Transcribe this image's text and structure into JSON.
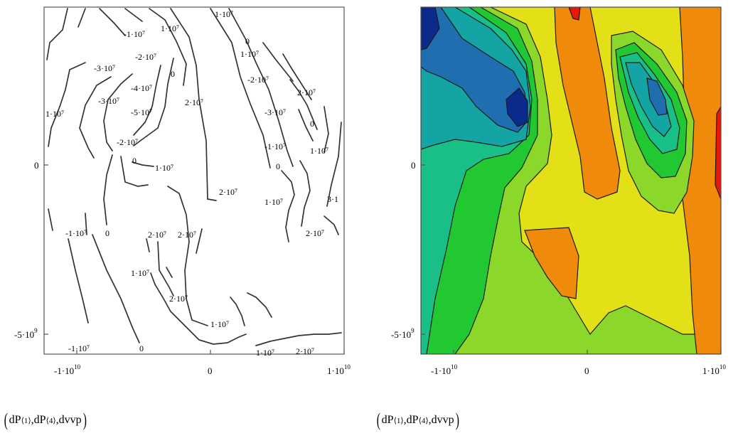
{
  "chart_data": [
    {
      "type": "contour",
      "style": "lines",
      "x_ticks": [
        {
          "base": "-1·10",
          "exp": "10",
          "value": -10000000000
        },
        {
          "base": "0",
          "exp": "",
          "value": 0
        },
        {
          "base": "1·10",
          "exp": "10",
          "value": 10000000000
        }
      ],
      "y_ticks": [
        {
          "base": "0",
          "exp": "",
          "value": 0
        },
        {
          "base": "-5·10",
          "exp": "9",
          "value": -5000000000
        }
      ],
      "contour_labels": [
        "-1·10⁷",
        "1·10⁷",
        "1·10⁷",
        "0",
        "-3·10⁷",
        "-2·10⁷",
        "1·10⁷",
        "0",
        "-2·10⁷",
        "-4·10⁷",
        "2·10⁷",
        "-3·10⁷",
        "-5·10⁷",
        "2·10⁷",
        "-3·10⁷",
        "1·10⁷",
        "0",
        "-2·10⁷",
        "-1·10⁷",
        "1·10⁷",
        "0",
        "1·10⁷",
        "0",
        "2·10⁷",
        "1·10⁷",
        "3·1",
        "-1·10⁷",
        "0",
        "2·10⁷",
        "2·10⁷",
        "2·10⁷",
        "1·10⁷",
        "2·10⁷",
        "1·10⁷",
        "-1·10⁷",
        "0",
        "1·10⁷",
        "2·10⁷"
      ],
      "caption": {
        "open": "(",
        "a": "dP",
        "a_sup": "⟨1⟩",
        "sep1": ",",
        "b": "dP",
        "b_sup": "⟨4⟩",
        "sep2": ",",
        "c": "dvvp",
        "close": ")"
      }
    },
    {
      "type": "contour",
      "style": "filled",
      "x_ticks": [
        {
          "base": "-1·10",
          "exp": "10",
          "value": -10000000000
        },
        {
          "base": "0",
          "exp": "",
          "value": 0
        },
        {
          "base": "1·10",
          "exp": "10",
          "value": 10000000000
        }
      ],
      "y_ticks": [
        {
          "base": "0",
          "exp": "",
          "value": 0
        },
        {
          "base": "-5·10",
          "exp": "9",
          "value": -5000000000
        }
      ],
      "colormap": [
        "#0a2a8c",
        "#1f6fb0",
        "#14a4a4",
        "#18c088",
        "#22c832",
        "#8cd82a",
        "#e4e018",
        "#f08a0a",
        "#e81808"
      ],
      "caption": {
        "open": "(",
        "a": "dP",
        "a_sup": "⟨1⟩",
        "sep1": ",",
        "b": "dP",
        "b_sup": "⟨4⟩",
        "sep2": ",",
        "c": "dvvp",
        "close": ")"
      }
    }
  ]
}
